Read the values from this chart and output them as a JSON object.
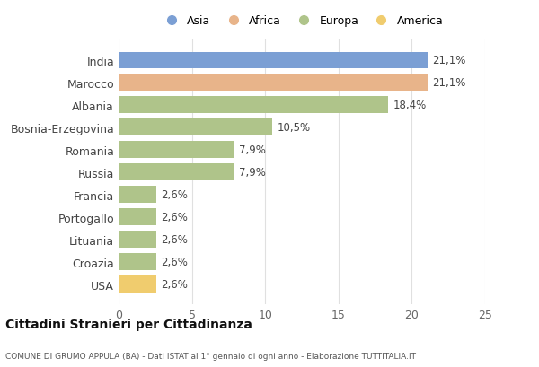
{
  "countries": [
    "India",
    "Marocco",
    "Albania",
    "Bosnia-Erzegovina",
    "Romania",
    "Russia",
    "Francia",
    "Portogallo",
    "Lituania",
    "Croazia",
    "USA"
  ],
  "values": [
    21.1,
    21.1,
    18.4,
    10.5,
    7.9,
    7.9,
    2.6,
    2.6,
    2.6,
    2.6,
    2.6
  ],
  "labels": [
    "21,1%",
    "21,1%",
    "18,4%",
    "10,5%",
    "7,9%",
    "7,9%",
    "2,6%",
    "2,6%",
    "2,6%",
    "2,6%",
    "2,6%"
  ],
  "colors": [
    "#7b9fd4",
    "#e8b48a",
    "#afc48a",
    "#afc48a",
    "#afc48a",
    "#afc48a",
    "#afc48a",
    "#afc48a",
    "#afc48a",
    "#afc48a",
    "#f0cc6e"
  ],
  "legend_labels": [
    "Asia",
    "Africa",
    "Europa",
    "America"
  ],
  "legend_colors": [
    "#7b9fd4",
    "#e8b48a",
    "#afc48a",
    "#f0cc6e"
  ],
  "title": "Cittadini Stranieri per Cittadinanza",
  "subtitle": "COMUNE DI GRUMO APPULA (BA) - Dati ISTAT al 1° gennaio di ogni anno - Elaborazione TUTTITALIA.IT",
  "xlim": [
    0,
    25
  ],
  "xticks": [
    0,
    5,
    10,
    15,
    20,
    25
  ],
  "background_color": "#ffffff",
  "grid_color": "#e0e0e0",
  "bar_height": 0.75,
  "label_fontsize": 8.5,
  "ytick_fontsize": 9,
  "xtick_fontsize": 9
}
